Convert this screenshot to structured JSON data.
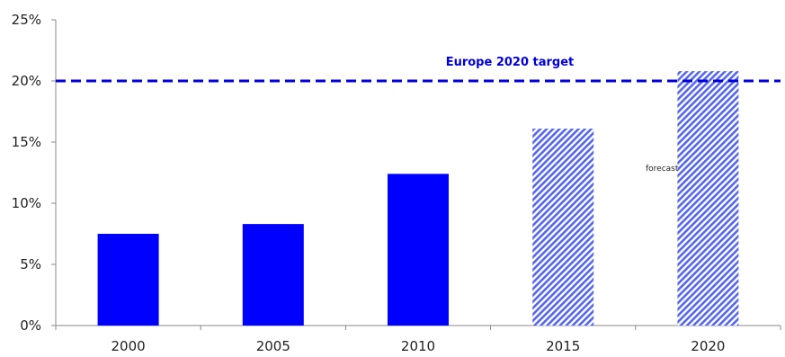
{
  "chart_data": {
    "type": "bar",
    "categories": [
      "2000",
      "2005",
      "2010",
      "2015",
      "2020"
    ],
    "values": [
      7.5,
      8.3,
      12.4,
      16.1,
      20.8
    ],
    "forecast": [
      false,
      false,
      false,
      true,
      true
    ],
    "ylim": [
      0,
      25
    ],
    "yticks": [
      0,
      5,
      10,
      15,
      20,
      25
    ],
    "ytick_labels": [
      "0%",
      "5%",
      "10%",
      "15%",
      "20%",
      "25%"
    ],
    "target": {
      "label": "Europe 2020 target",
      "value": 20
    },
    "annotation": "forecast",
    "grid": false,
    "colors": {
      "bar": "#0000ff",
      "forecast_bar": "#5566ee",
      "target_line": "#0000dd",
      "axis": "#888888"
    }
  }
}
